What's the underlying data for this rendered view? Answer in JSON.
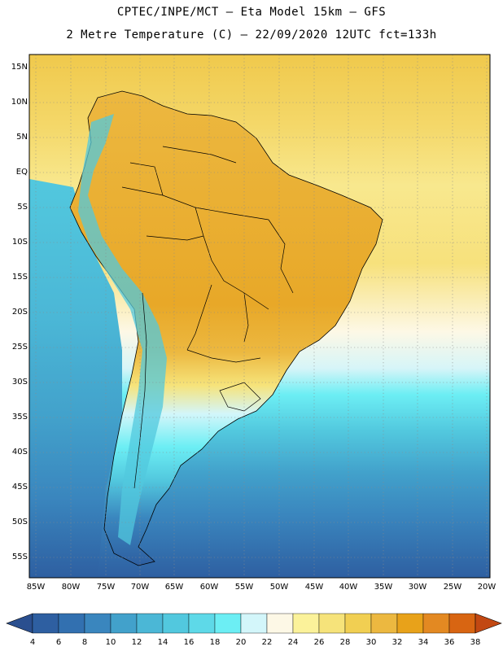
{
  "title": {
    "line1": "CPTEC/INPE/MCT –  Eta Model 15km – GFS",
    "line2": "2 Metre Temperature (C) – 22/09/2020 12UTC fct=133h"
  },
  "axes": {
    "lat_labels": [
      "15N",
      "10N",
      "5N",
      "EQ",
      "5S",
      "10S",
      "15S",
      "20S",
      "25S",
      "30S",
      "35S",
      "40S",
      "45S",
      "50S",
      "55S"
    ],
    "lon_labels": [
      "85W",
      "80W",
      "75W",
      "70W",
      "65W",
      "60W",
      "55W",
      "50W",
      "45W",
      "40W",
      "35W",
      "30W",
      "25W",
      "20W"
    ]
  },
  "colorbar": {
    "labels": [
      "4",
      "6",
      "8",
      "10",
      "12",
      "14",
      "16",
      "18",
      "20",
      "22",
      "24",
      "26",
      "28",
      "30",
      "32",
      "34",
      "36",
      "38"
    ],
    "colors": [
      "#2e5fa1",
      "#3270b0",
      "#3a86be",
      "#42a1cb",
      "#4bb7d6",
      "#52c8de",
      "#5ed9e8",
      "#6ceef4",
      "#d3f6fa",
      "#fdf8e6",
      "#fbf29a",
      "#f6e37a",
      "#f1cf52",
      "#ecb840",
      "#e8a21a",
      "#e38922",
      "#d86512",
      "#c24812",
      "#b13b12"
    ]
  },
  "colors": {
    "ocean_north": "#f1cf52",
    "ocean_south": "#2e5fa1",
    "land": "#ecb840",
    "border": "#000000"
  }
}
